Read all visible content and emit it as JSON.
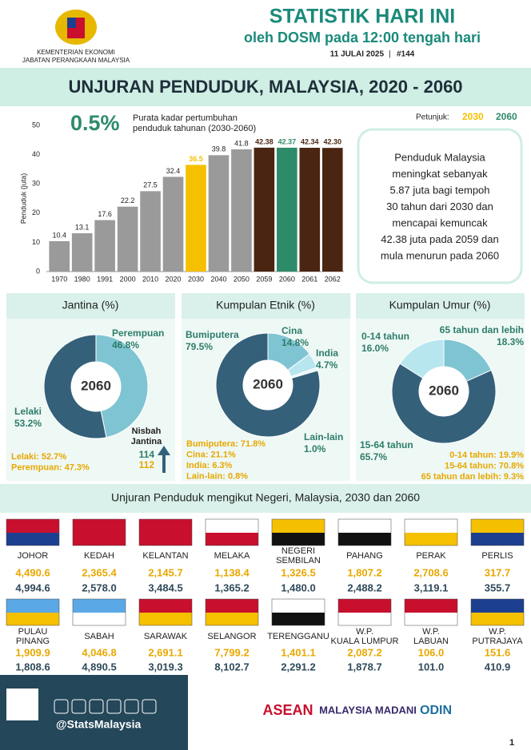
{
  "header": {
    "ministry": "KEMENTERIAN EKONOMI",
    "department": "JABATAN PERANGKAAN MALAYSIA",
    "title": "STATISTIK HARI INI",
    "subtitle": "oleh DOSM pada 12:00 tengah hari",
    "date": "11 JULAI 2025",
    "issue": "#144"
  },
  "banner": "UNJURAN PENDUDUK, MALAYSIA, 2020 - 2060",
  "chart_data": [
    {
      "type": "bar",
      "y_label": "Penduduk (juta)",
      "headline_value": "0.5%",
      "headline_text": [
        "Purata kadar pertumbuhan",
        "penduduk tahunan (2030-2060)"
      ],
      "legend_title": "Petunjuk:",
      "legend": [
        {
          "name": "2030",
          "color": "#f5c000"
        },
        {
          "name": "2060",
          "color": "#2e8b6a"
        }
      ],
      "categories": [
        "1970",
        "1980",
        "1991",
        "2000",
        "2010",
        "2020",
        "2030",
        "2040",
        "2050",
        "2059",
        "2060",
        "2061",
        "2062"
      ],
      "values": [
        10.4,
        13.1,
        17.6,
        22.2,
        27.5,
        32.4,
        36.5,
        39.8,
        41.8,
        42.38,
        42.37,
        42.34,
        42.3
      ],
      "value_labels": [
        "10.4",
        "13.1",
        "17.6",
        "22.2",
        "27.5",
        "32.4",
        "36.5",
        "39.8",
        "41.8",
        "42.38",
        "42.37",
        "42.34",
        "42.30"
      ],
      "colors": [
        "#9a9a9a",
        "#9a9a9a",
        "#9a9a9a",
        "#9a9a9a",
        "#9a9a9a",
        "#9a9a9a",
        "#f5c000",
        "#9a9a9a",
        "#9a9a9a",
        "#4a2511",
        "#2e8b6a",
        "#4a2511",
        "#4a2511"
      ],
      "ylim": [
        0,
        50
      ],
      "yticks": [
        0,
        10,
        20,
        30,
        40,
        50
      ],
      "note": [
        "Penduduk Malaysia",
        "meningkat sebanyak",
        "5.87 juta bagi tempoh",
        "30 tahun dari 2030 dan",
        "mencapai kemuncak",
        "42.38 juta pada 2059 dan",
        "mula menurun pada 2060"
      ]
    },
    {
      "type": "pie",
      "title": "Jantina (%)",
      "center_label": "2060",
      "categories": [
        "Perempuan",
        "Lelaki"
      ],
      "values": [
        46.8,
        53.2
      ],
      "value_labels": [
        "46.8%",
        "53.2%"
      ],
      "colors": [
        "#7fc4d3",
        "#35607a"
      ],
      "summary": [
        "Lelaki: 52.7%",
        "Perempuan: 47.3%"
      ],
      "ratio_label": [
        "Nisbah",
        "Jantina"
      ],
      "ratio_values": [
        114,
        112
      ]
    },
    {
      "type": "pie",
      "title": "Kumpulan Etnik (%)",
      "center_label": "2060",
      "categories": [
        "Cina",
        "India",
        "Lain-lain",
        "Bumiputera"
      ],
      "values": [
        14.8,
        4.7,
        1.0,
        79.5
      ],
      "value_labels": [
        "14.8%",
        "4.7%",
        "1.0%",
        "79.5%"
      ],
      "colors": [
        "#7fc4d3",
        "#b7e6ef",
        "#e6f6f9",
        "#35607a"
      ],
      "summary": [
        "Bumiputera: 71.8%",
        "Cina: 21.1%",
        "India: 6.3%",
        "Lain-lain: 0.8%"
      ]
    },
    {
      "type": "pie",
      "title": "Kumpulan Umur (%)",
      "center_label": "2060",
      "categories": [
        "65 tahun dan lebih",
        "15-64 tahun",
        "0-14 tahun"
      ],
      "values": [
        18.3,
        65.7,
        16.0
      ],
      "value_labels": [
        "18.3%",
        "65.7%",
        "16.0%"
      ],
      "colors": [
        "#7fc4d3",
        "#35607a",
        "#b7e6ef"
      ],
      "summary": [
        "0-14 tahun: 19.9%",
        "15-64 tahun: 70.8%",
        "65 tahun dan lebih: 9.3%"
      ]
    }
  ],
  "states": {
    "title": "Unjuran Penduduk mengikut Negeri, Malaysia, 2030 dan 2060",
    "rows": [
      {
        "name": [
          "JOHOR"
        ],
        "v2030": "4,490.6",
        "v2060": "4,994.6"
      },
      {
        "name": [
          "KEDAH"
        ],
        "v2030": "2,365.4",
        "v2060": "2,578.0"
      },
      {
        "name": [
          "KELANTAN"
        ],
        "v2030": "2,145.7",
        "v2060": "3,484.5"
      },
      {
        "name": [
          "MELAKA"
        ],
        "v2030": "1,138.4",
        "v2060": "1,365.2"
      },
      {
        "name": [
          "NEGERI",
          "SEMBILAN"
        ],
        "v2030": "1,326.5",
        "v2060": "1,480.0"
      },
      {
        "name": [
          "PAHANG"
        ],
        "v2030": "1,807.2",
        "v2060": "2,488.2"
      },
      {
        "name": [
          "PERAK"
        ],
        "v2030": "2,708.6",
        "v2060": "3,119.1"
      },
      {
        "name": [
          "PERLIS"
        ],
        "v2030": "317.7",
        "v2060": "355.7"
      },
      {
        "name": [
          "PULAU",
          "PINANG"
        ],
        "v2030": "1,909.9",
        "v2060": "1,808.6"
      },
      {
        "name": [
          "SABAH"
        ],
        "v2030": "4,046.8",
        "v2060": "4,890.5"
      },
      {
        "name": [
          "SARAWAK"
        ],
        "v2030": "2,691.1",
        "v2060": "3,019.3"
      },
      {
        "name": [
          "SELANGOR"
        ],
        "v2030": "7,799.2",
        "v2060": "8,102.7"
      },
      {
        "name": [
          "TERENGGANU"
        ],
        "v2030": "1,401.1",
        "v2060": "2,291.2"
      },
      {
        "name": [
          "W.P.",
          "KUALA LUMPUR"
        ],
        "v2030": "2,087.2",
        "v2060": "1,878.7"
      },
      {
        "name": [
          "W.P.",
          "LABUAN"
        ],
        "v2030": "106.0",
        "v2060": "101.0"
      },
      {
        "name": [
          "W.P.",
          "PUTRAJAYA"
        ],
        "v2030": "151.6",
        "v2060": "410.9"
      }
    ]
  },
  "footer": {
    "handle": "@StatsMalaysia",
    "logos": [
      "ASEAN",
      "MALAYSIA MADANI",
      "ODIN"
    ],
    "page": "1"
  }
}
